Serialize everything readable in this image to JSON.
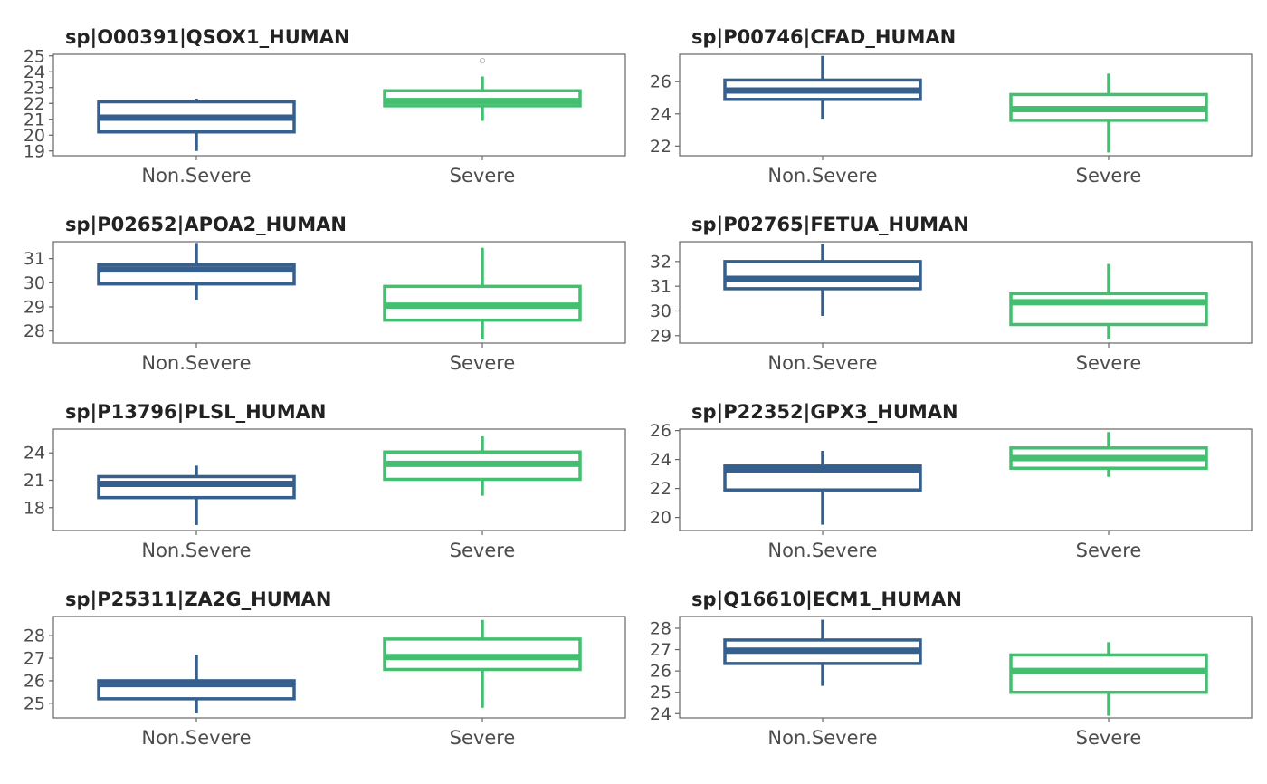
{
  "colors": {
    "Non.Severe": "#355f8d",
    "Severe": "#44bf70",
    "outlier": "#bdbdbd"
  },
  "chart_data": [
    {
      "type": "box",
      "title": "sp|O00391|QSOX1_HUMAN",
      "categories": [
        "Non.Severe",
        "Severe"
      ],
      "ylim": [
        18.7,
        25.1
      ],
      "yticks": [
        19,
        20,
        21,
        22,
        23,
        24,
        25
      ],
      "boxes": [
        {
          "category": "Non.Severe",
          "whisker_low": 19.0,
          "q1": 20.2,
          "median": 21.1,
          "q3": 22.1,
          "whisker_high": 22.3,
          "outliers": []
        },
        {
          "category": "Severe",
          "whisker_low": 20.9,
          "q1": 21.85,
          "median": 22.15,
          "q3": 22.8,
          "whisker_high": 23.7,
          "outliers": [
            24.7
          ]
        }
      ]
    },
    {
      "type": "box",
      "title": "sp|P00746|CFAD_HUMAN",
      "categories": [
        "Non.Severe",
        "Severe"
      ],
      "ylim": [
        21.4,
        27.7
      ],
      "yticks": [
        22,
        24,
        26
      ],
      "boxes": [
        {
          "category": "Non.Severe",
          "whisker_low": 23.7,
          "q1": 24.9,
          "median": 25.45,
          "q3": 26.1,
          "whisker_high": 27.6,
          "outliers": []
        },
        {
          "category": "Severe",
          "whisker_low": 21.6,
          "q1": 23.6,
          "median": 24.3,
          "q3": 25.2,
          "whisker_high": 26.5,
          "outliers": []
        }
      ]
    },
    {
      "type": "box",
      "title": "sp|P02652|APOA2_HUMAN",
      "categories": [
        "Non.Severe",
        "Severe"
      ],
      "ylim": [
        27.5,
        31.7
      ],
      "yticks": [
        28,
        29,
        30,
        31
      ],
      "boxes": [
        {
          "category": "Non.Severe",
          "whisker_low": 29.3,
          "q1": 29.95,
          "median": 30.55,
          "q3": 30.75,
          "whisker_high": 31.65,
          "outliers": []
        },
        {
          "category": "Severe",
          "whisker_low": 27.65,
          "q1": 28.45,
          "median": 29.05,
          "q3": 29.85,
          "whisker_high": 31.45,
          "outliers": []
        }
      ]
    },
    {
      "type": "box",
      "title": "sp|P02765|FETUA_HUMAN",
      "categories": [
        "Non.Severe",
        "Severe"
      ],
      "ylim": [
        28.7,
        32.8
      ],
      "yticks": [
        29,
        30,
        31,
        32
      ],
      "boxes": [
        {
          "category": "Non.Severe",
          "whisker_low": 29.8,
          "q1": 30.9,
          "median": 31.3,
          "q3": 32.0,
          "whisker_high": 32.7,
          "outliers": []
        },
        {
          "category": "Severe",
          "whisker_low": 28.85,
          "q1": 29.45,
          "median": 30.35,
          "q3": 30.7,
          "whisker_high": 31.9,
          "outliers": []
        }
      ]
    },
    {
      "type": "box",
      "title": "sp|P13796|PLSL_HUMAN",
      "categories": [
        "Non.Severe",
        "Severe"
      ],
      "ylim": [
        15.5,
        26.6
      ],
      "yticks": [
        18,
        21,
        24
      ],
      "boxes": [
        {
          "category": "Non.Severe",
          "whisker_low": 16.1,
          "q1": 19.1,
          "median": 20.6,
          "q3": 21.4,
          "whisker_high": 22.6,
          "outliers": []
        },
        {
          "category": "Severe",
          "whisker_low": 19.3,
          "q1": 21.1,
          "median": 22.8,
          "q3": 24.1,
          "whisker_high": 25.8,
          "outliers": []
        }
      ]
    },
    {
      "type": "box",
      "title": "sp|P22352|GPX3_HUMAN",
      "categories": [
        "Non.Severe",
        "Severe"
      ],
      "ylim": [
        19.1,
        26.1
      ],
      "yticks": [
        20,
        22,
        24,
        26
      ],
      "boxes": [
        {
          "category": "Non.Severe",
          "whisker_low": 19.5,
          "q1": 21.9,
          "median": 23.3,
          "q3": 23.55,
          "whisker_high": 24.6,
          "outliers": []
        },
        {
          "category": "Severe",
          "whisker_low": 22.8,
          "q1": 23.4,
          "median": 24.1,
          "q3": 24.8,
          "whisker_high": 25.9,
          "outliers": []
        }
      ]
    },
    {
      "type": "box",
      "title": "sp|P25311|ZA2G_HUMAN",
      "categories": [
        "Non.Severe",
        "Severe"
      ],
      "ylim": [
        24.35,
        28.85
      ],
      "yticks": [
        25,
        26,
        27,
        28
      ],
      "boxes": [
        {
          "category": "Non.Severe",
          "whisker_low": 24.55,
          "q1": 25.2,
          "median": 25.85,
          "q3": 26.0,
          "whisker_high": 27.15,
          "outliers": []
        },
        {
          "category": "Severe",
          "whisker_low": 24.8,
          "q1": 26.5,
          "median": 27.05,
          "q3": 27.85,
          "whisker_high": 28.7,
          "outliers": []
        }
      ]
    },
    {
      "type": "box",
      "title": "sp|Q16610|ECM1_HUMAN",
      "categories": [
        "Non.Severe",
        "Severe"
      ],
      "ylim": [
        23.8,
        28.55
      ],
      "yticks": [
        24,
        25,
        26,
        27,
        28
      ],
      "boxes": [
        {
          "category": "Non.Severe",
          "whisker_low": 25.3,
          "q1": 26.35,
          "median": 26.95,
          "q3": 27.45,
          "whisker_high": 28.4,
          "outliers": []
        },
        {
          "category": "Severe",
          "whisker_low": 23.9,
          "q1": 25.0,
          "median": 26.0,
          "q3": 26.75,
          "whisker_high": 27.35,
          "outliers": []
        }
      ]
    }
  ]
}
